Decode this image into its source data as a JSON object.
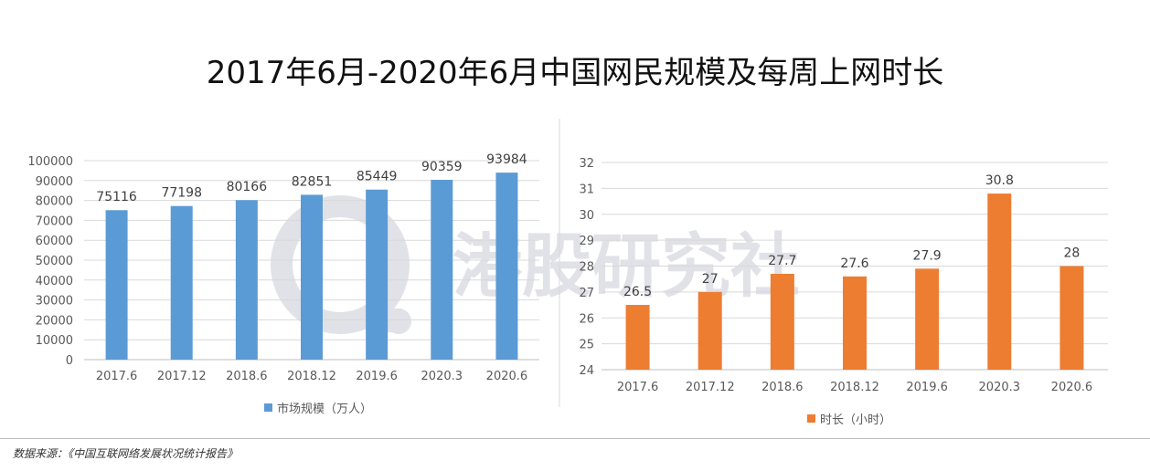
{
  "title": "2017年6月-2020年6月中国网民规模及每周上网时长",
  "watermark": {
    "text": "港股研究社",
    "color": "#c9c9d6"
  },
  "source": "数据来源：《中国互联网络发展状况统计报告》",
  "chart_data": [
    {
      "type": "bar",
      "categories": [
        "2017.6",
        "2017.12",
        "2018.6",
        "2018.12",
        "2019.6",
        "2020.3",
        "2020.6"
      ],
      "series": [
        {
          "name": "市场规模（万人）",
          "values": [
            75116,
            77198,
            80166,
            82851,
            85449,
            90359,
            93984
          ],
          "color": "#5b9bd5"
        }
      ],
      "ylim": [
        0,
        100000
      ],
      "yticks": [
        0,
        10000,
        20000,
        30000,
        40000,
        50000,
        60000,
        70000,
        80000,
        90000,
        100000
      ],
      "grid": true,
      "legend": "bottom",
      "data_labels": true
    },
    {
      "type": "bar",
      "categories": [
        "2017.6",
        "2017.12",
        "2018.6",
        "2018.12",
        "2019.6",
        "2020.3",
        "2020.6"
      ],
      "series": [
        {
          "name": "时长（小时）",
          "values": [
            26.5,
            27,
            27.7,
            27.6,
            27.9,
            30.8,
            28
          ],
          "color": "#ed7d31"
        }
      ],
      "ylim": [
        24,
        32
      ],
      "yticks": [
        24,
        25,
        26,
        27,
        28,
        29,
        30,
        31,
        32
      ],
      "grid": true,
      "legend": "bottom",
      "data_labels": true
    }
  ]
}
